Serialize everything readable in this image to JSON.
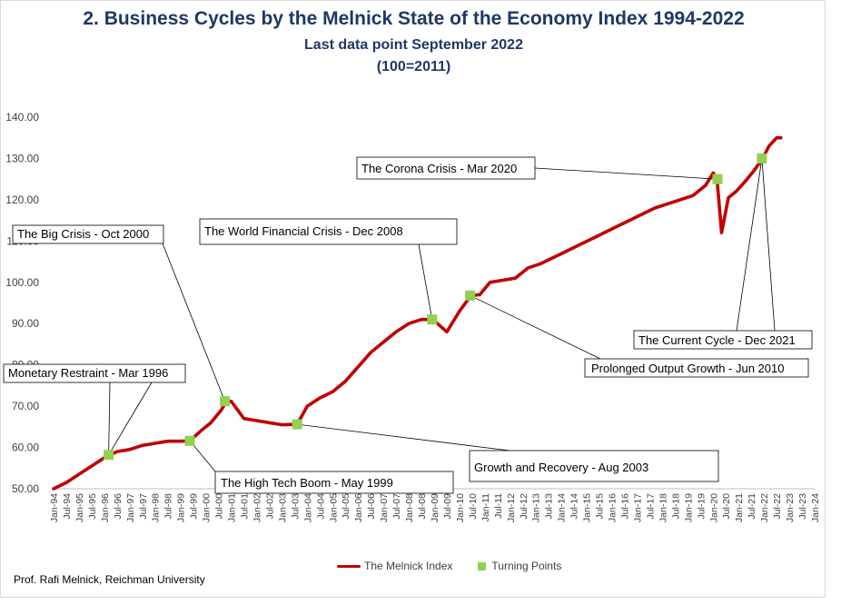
{
  "chart_data": {
    "type": "line",
    "title": "2.  Business Cycles by the Melnick State of the Economy Index 1994-2022",
    "subtitle": "Last data point September 2022",
    "subtitle2": "(100=2011)",
    "ylim": [
      50,
      140
    ],
    "yticks": [
      "50.00",
      "60.00",
      "70.00",
      "80.00",
      "90.00",
      "100.00",
      "110.00",
      "120.00",
      "130.00",
      "140.00"
    ],
    "xlabels": [
      "Jan-94",
      "Jul-94",
      "Jan-95",
      "Jul-95",
      "Jan-96",
      "Jul-96",
      "Jan-97",
      "Jul-97",
      "Jan-98",
      "Jul-98",
      "Jan-99",
      "Jul-99",
      "Jan-00",
      "Jul-00",
      "Jan-01",
      "Jul-01",
      "Jan-02",
      "Jul-02",
      "Jan-03",
      "Jul-03",
      "Jan-04",
      "Jul-04",
      "Jan-05",
      "Jul-05",
      "Jan-06",
      "Jul-06",
      "Jan-07",
      "Jul-07",
      "Jan-08",
      "Jul-08",
      "Jan-09",
      "Jul-09",
      "Jan-10",
      "Jul-10",
      "Jan-11",
      "Jul-11",
      "Jan-12",
      "Jul-12",
      "Jan-13",
      "Jul-13",
      "Jan-14",
      "Jul-14",
      "Jan-15",
      "Jul-15",
      "Jan-16",
      "Jul-16",
      "Jan-17",
      "Jul-17",
      "Jan-18",
      "Jul-18",
      "Jan-19",
      "Jul-19",
      "Jan-20",
      "Jul-20",
      "Jan-21",
      "Jul-21",
      "Jan-22",
      "Jul-22",
      "Jan-23",
      "Jul-23",
      "Jan-24"
    ],
    "x_start": "Jan-94",
    "grid": false,
    "series": [
      {
        "name": "The Melnick Index",
        "color": "#c00000",
        "x": [
          1994.0,
          1994.5,
          1995.0,
          1995.5,
          1996.0,
          1996.25,
          1996.5,
          1997.0,
          1997.5,
          1998.0,
          1998.5,
          1999.0,
          1999.37,
          1999.8,
          2000.2,
          2000.6,
          2000.8,
          2001.0,
          2001.5,
          2002.0,
          2002.5,
          2003.0,
          2003.6,
          2004.0,
          2004.5,
          2005.0,
          2005.5,
          2006.0,
          2006.5,
          2007.0,
          2007.5,
          2008.0,
          2008.5,
          2008.95,
          2009.5,
          2010.0,
          2010.45,
          2010.8,
          2011.2,
          2011.7,
          2012.2,
          2012.7,
          2013.2,
          2013.7,
          2014.2,
          2014.7,
          2015.2,
          2015.7,
          2016.2,
          2016.7,
          2017.2,
          2017.7,
          2018.2,
          2018.7,
          2019.2,
          2019.7,
          2020.0,
          2020.15,
          2020.33,
          2020.6,
          2020.9,
          2021.2,
          2021.6,
          2021.95,
          2022.2,
          2022.5,
          2022.67
        ],
        "y": [
          50.0,
          51.5,
          53.5,
          55.5,
          57.5,
          58.2,
          59.0,
          59.5,
          60.5,
          61.0,
          61.5,
          61.5,
          61.6,
          64.0,
          66.0,
          69.0,
          71.0,
          71.2,
          67.0,
          66.5,
          66.0,
          65.5,
          65.6,
          70.0,
          72.0,
          73.5,
          76.0,
          79.5,
          83.0,
          85.5,
          88.0,
          90.0,
          91.0,
          91.0,
          88.0,
          93.0,
          96.8,
          97.0,
          100.0,
          100.5,
          101.0,
          103.5,
          104.5,
          106.0,
          107.5,
          109.0,
          110.5,
          112.0,
          113.5,
          115.0,
          116.5,
          118.0,
          119.0,
          120.0,
          121.0,
          123.5,
          126.5,
          125.0,
          112.0,
          120.5,
          122.0,
          124.0,
          127.0,
          130.0,
          133.0,
          135.0,
          135.0
        ]
      }
    ],
    "turning_points": {
      "name": "Turning Points",
      "color": "#92d050",
      "points": [
        {
          "x": 1996.17,
          "y": 58.2,
          "label": "Monetary Restraint - Mar 1996"
        },
        {
          "x": 1999.37,
          "y": 61.6,
          "label": "The High  Tech Boom - May 1999"
        },
        {
          "x": 2000.75,
          "y": 71.2,
          "label": "The Big Crisis - Oct 2000"
        },
        {
          "x": 2003.6,
          "y": 65.6,
          "label": "Growth and Recovery - Aug 2003"
        },
        {
          "x": 2008.92,
          "y": 91.0,
          "label": "The World Financial Crisis - Dec 2008"
        },
        {
          "x": 2010.42,
          "y": 96.8,
          "label": "Prolonged Output Growth - Jun 2010"
        },
        {
          "x": 2020.17,
          "y": 125.0,
          "label": "The Corona Crisis - Mar 2020"
        },
        {
          "x": 2021.92,
          "y": 130.0,
          "label": "The Current Cycle - Dec 2021"
        }
      ]
    }
  },
  "legend": {
    "line_label": "The Melnick Index",
    "points_label": "Turning Points"
  },
  "credit": "Prof. Rafi Melnick, Reichman University"
}
